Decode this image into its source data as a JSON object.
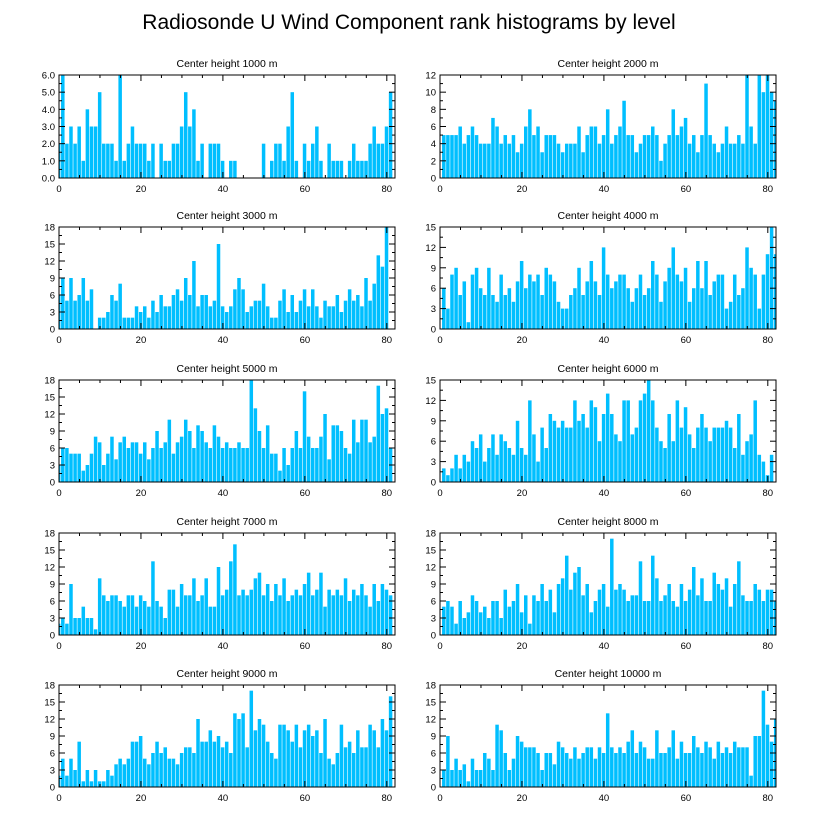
{
  "title": "Radiosonde U Wind Component rank histograms by level",
  "colors": {
    "bar": "#00bfff",
    "frame": "#000000",
    "background": "#ffffff"
  },
  "chart_data": [
    {
      "type": "bar",
      "title": "Center height 1000 m",
      "xlim": [
        0,
        82
      ],
      "ylim": [
        0,
        6
      ],
      "xticks": [
        0,
        20,
        40,
        60,
        80
      ],
      "yticks": [
        0,
        1,
        2,
        3,
        4,
        5,
        6
      ],
      "ytick_labels": [
        "0.0",
        "1.0",
        "2.0",
        "3.0",
        "4.0",
        "5.0",
        "6.0"
      ],
      "x_start": 0,
      "values": [
        2,
        6,
        2,
        3,
        2,
        3,
        1,
        4,
        3,
        3,
        5,
        2,
        2,
        2,
        1,
        6,
        1,
        2,
        3,
        2,
        2,
        2,
        1,
        2,
        0,
        2,
        1,
        1,
        2,
        2,
        3,
        5,
        3,
        4,
        1,
        2,
        0,
        2,
        2,
        2,
        1,
        0,
        1,
        1,
        0,
        0,
        0,
        0,
        0,
        0,
        2,
        0,
        1,
        2,
        2,
        1,
        3,
        5,
        1,
        0,
        2,
        1,
        2,
        3,
        1,
        0,
        2,
        1,
        1,
        1,
        0,
        1,
        2,
        1,
        1,
        1,
        2,
        3,
        2,
        2,
        3,
        5
      ]
    },
    {
      "type": "bar",
      "title": "Center height 2000 m",
      "xlim": [
        0,
        82
      ],
      "ylim": [
        0,
        12
      ],
      "xticks": [
        0,
        20,
        40,
        60,
        80
      ],
      "yticks": [
        0,
        2,
        4,
        6,
        8,
        10,
        12
      ],
      "ytick_labels": [
        "0",
        "2",
        "4",
        "6",
        "8",
        "10",
        "12"
      ],
      "x_start": 1,
      "values": [
        5,
        5,
        5,
        5,
        6,
        4,
        5,
        6,
        5,
        4,
        4,
        4,
        7,
        6,
        4,
        5,
        4,
        5,
        3,
        4,
        6,
        8,
        5,
        6,
        3,
        5,
        5,
        5,
        4,
        3,
        4,
        4,
        4,
        6,
        3,
        5,
        6,
        6,
        4,
        5,
        8,
        4,
        5,
        6,
        9,
        5,
        5,
        3,
        4,
        5,
        5,
        6,
        5,
        2,
        4,
        5,
        8,
        5,
        6,
        7,
        4,
        5,
        3,
        5,
        11,
        5,
        4,
        3,
        4,
        6,
        4,
        4,
        5,
        4,
        12,
        6,
        4,
        12,
        10,
        12,
        10,
        9
      ]
    },
    {
      "type": "bar",
      "title": "Center height 3000 m",
      "xlim": [
        0,
        82
      ],
      "ylim": [
        0,
        18
      ],
      "xticks": [
        0,
        20,
        40,
        60,
        80
      ],
      "yticks": [
        0,
        3,
        6,
        9,
        12,
        15,
        18
      ],
      "ytick_labels": [
        "0",
        "3",
        "6",
        "9",
        "12",
        "15",
        "18"
      ],
      "x_start": 0,
      "values": [
        6,
        9,
        5,
        9,
        5,
        6,
        9,
        5,
        7,
        0,
        2,
        2,
        3,
        6,
        5,
        8,
        2,
        2,
        2,
        4,
        3,
        4,
        2,
        5,
        3,
        6,
        4,
        4,
        6,
        7,
        5,
        9,
        6,
        12,
        4,
        6,
        6,
        4,
        5,
        15,
        4,
        3,
        4,
        7,
        9,
        7,
        3,
        4,
        5,
        5,
        8,
        4,
        2,
        2,
        5,
        7,
        3,
        6,
        3,
        5,
        7,
        4,
        7,
        4,
        2,
        5,
        4,
        4,
        6,
        3,
        5,
        7,
        5,
        6,
        4,
        9,
        5,
        8,
        13,
        11,
        18
      ]
    },
    {
      "type": "bar",
      "title": "Center height 4000 m",
      "xlim": [
        0,
        82
      ],
      "ylim": [
        0,
        15
      ],
      "xticks": [
        0,
        20,
        40,
        60,
        80
      ],
      "yticks": [
        0,
        3,
        6,
        9,
        12,
        15
      ],
      "ytick_labels": [
        "0",
        "3",
        "6",
        "9",
        "12",
        "15"
      ],
      "x_start": 1,
      "values": [
        6,
        3,
        8,
        9,
        5,
        7,
        1,
        8,
        9,
        6,
        5,
        9,
        5,
        4,
        8,
        5,
        6,
        4,
        7,
        10,
        6,
        8,
        7,
        8,
        5,
        9,
        8,
        7,
        4,
        3,
        3,
        5,
        6,
        9,
        5,
        7,
        10,
        7,
        5,
        12,
        8,
        6,
        7,
        8,
        8,
        6,
        4,
        6,
        8,
        5,
        6,
        10,
        8,
        4,
        7,
        9,
        12,
        8,
        7,
        9,
        4,
        6,
        10,
        6,
        10,
        5,
        7,
        8,
        8,
        3,
        4,
        8,
        5,
        6,
        12,
        9,
        8,
        3,
        8,
        11,
        15,
        11
      ]
    },
    {
      "type": "bar",
      "title": "Center height 5000 m",
      "xlim": [
        0,
        82
      ],
      "ylim": [
        0,
        18
      ],
      "xticks": [
        0,
        20,
        40,
        60,
        80
      ],
      "yticks": [
        0,
        3,
        6,
        9,
        12,
        15,
        18
      ],
      "ytick_labels": [
        "0",
        "3",
        "6",
        "9",
        "12",
        "15",
        "18"
      ],
      "x_start": 0,
      "values": [
        3,
        6,
        6,
        5,
        5,
        5,
        2,
        3,
        5,
        8,
        7,
        3,
        5,
        8,
        4,
        7,
        8,
        6,
        7,
        7,
        5,
        7,
        4,
        6,
        9,
        6,
        7,
        11,
        5,
        7,
        8,
        11,
        9,
        6,
        10,
        9,
        7,
        6,
        10,
        8,
        6,
        7,
        6,
        6,
        7,
        6,
        6,
        18,
        13,
        9,
        6,
        10,
        5,
        5,
        2,
        6,
        3,
        6,
        9,
        6,
        16,
        8,
        6,
        6,
        8,
        12,
        4,
        10,
        10,
        9,
        6,
        5,
        11,
        7,
        11,
        11,
        7,
        8,
        17,
        12,
        13,
        6
      ]
    },
    {
      "type": "bar",
      "title": "Center height 6000 m",
      "xlim": [
        0,
        82
      ],
      "ylim": [
        0,
        15
      ],
      "xticks": [
        0,
        20,
        40,
        60,
        80
      ],
      "yticks": [
        0,
        3,
        6,
        9,
        12,
        15
      ],
      "ytick_labels": [
        "0",
        "3",
        "6",
        "9",
        "12",
        "15"
      ],
      "x_start": 1,
      "values": [
        2,
        1,
        2,
        4,
        2,
        4,
        3,
        6,
        5,
        7,
        3,
        5,
        7,
        4,
        7,
        6,
        5,
        4,
        9,
        5,
        4,
        12,
        7,
        3,
        8,
        5,
        10,
        9,
        8,
        9,
        8,
        8,
        12,
        9,
        10,
        8,
        12,
        11,
        6,
        10,
        13,
        10,
        7,
        6,
        12,
        12,
        7,
        8,
        12,
        13,
        15,
        12,
        8,
        6,
        5,
        10,
        6,
        12,
        8,
        11,
        7,
        5,
        8,
        10,
        8,
        6,
        8,
        8,
        8,
        9,
        8,
        5,
        10,
        4,
        6,
        7,
        12,
        4,
        3,
        1,
        4
      ]
    },
    {
      "type": "bar",
      "title": "Center height 7000 m",
      "xlim": [
        0,
        82
      ],
      "ylim": [
        0,
        18
      ],
      "xticks": [
        0,
        20,
        40,
        60,
        80
      ],
      "yticks": [
        0,
        3,
        6,
        9,
        12,
        15,
        18
      ],
      "ytick_labels": [
        "0",
        "3",
        "6",
        "9",
        "12",
        "15",
        "18"
      ],
      "x_start": 0,
      "values": [
        2,
        3,
        2,
        9,
        3,
        3,
        5,
        3,
        3,
        1,
        10,
        7,
        6,
        7,
        7,
        6,
        5,
        7,
        7,
        5,
        7,
        6,
        5,
        13,
        6,
        5,
        3,
        8,
        8,
        5,
        9,
        7,
        7,
        10,
        6,
        7,
        10,
        5,
        5,
        12,
        7,
        8,
        13,
        16,
        7,
        8,
        7,
        8,
        10,
        11,
        7,
        9,
        6,
        9,
        7,
        10,
        6,
        7,
        8,
        7,
        9,
        11,
        7,
        8,
        11,
        5,
        8,
        7,
        8,
        7,
        10,
        6,
        8,
        7,
        9,
        7,
        5,
        9,
        6,
        9,
        8,
        7
      ]
    },
    {
      "type": "bar",
      "title": "Center height 8000 m",
      "xlim": [
        0,
        82
      ],
      "ylim": [
        0,
        18
      ],
      "xticks": [
        0,
        20,
        40,
        60,
        80
      ],
      "yticks": [
        0,
        3,
        6,
        9,
        12,
        15,
        18
      ],
      "ytick_labels": [
        "0",
        "3",
        "6",
        "9",
        "12",
        "15",
        "18"
      ],
      "x_start": 1,
      "values": [
        5,
        6,
        5,
        2,
        6,
        3,
        4,
        7,
        6,
        4,
        5,
        3,
        6,
        6,
        3,
        8,
        5,
        6,
        9,
        4,
        7,
        2,
        7,
        6,
        9,
        6,
        8,
        4,
        9,
        10,
        14,
        8,
        11,
        12,
        7,
        9,
        4,
        6,
        8,
        9,
        5,
        17,
        8,
        9,
        8,
        6,
        7,
        7,
        13,
        6,
        6,
        14,
        10,
        6,
        7,
        9,
        6,
        5,
        9,
        6,
        8,
        12,
        7,
        10,
        6,
        6,
        11,
        9,
        8,
        10,
        5,
        9,
        13,
        7,
        6,
        6,
        9,
        8,
        6,
        8,
        8,
        6
      ]
    },
    {
      "type": "bar",
      "title": "Center height 9000 m",
      "xlim": [
        0,
        82
      ],
      "ylim": [
        0,
        18
      ],
      "xticks": [
        0,
        20,
        40,
        60,
        80
      ],
      "yticks": [
        0,
        3,
        6,
        9,
        12,
        15,
        18
      ],
      "ytick_labels": [
        "0",
        "3",
        "6",
        "9",
        "12",
        "15",
        "18"
      ],
      "x_start": 0,
      "values": [
        2,
        5,
        2,
        5,
        3,
        8,
        1,
        3,
        1,
        3,
        1,
        1,
        3,
        2,
        4,
        5,
        4,
        5,
        8,
        8,
        9,
        5,
        4,
        6,
        8,
        6,
        7,
        5,
        5,
        4,
        6,
        7,
        7,
        6,
        12,
        8,
        8,
        10,
        8,
        9,
        7,
        8,
        6,
        13,
        12,
        13,
        7,
        17,
        10,
        12,
        11,
        8,
        6,
        5,
        11,
        11,
        10,
        8,
        11,
        7,
        10,
        11,
        9,
        10,
        6,
        12,
        5,
        4,
        6,
        11,
        7,
        8,
        6,
        10,
        7,
        7,
        11,
        10,
        7,
        12,
        10,
        16
      ]
    },
    {
      "type": "bar",
      "title": "Center height 10000 m",
      "xlim": [
        0,
        82
      ],
      "ylim": [
        0,
        18
      ],
      "xticks": [
        0,
        20,
        40,
        60,
        80
      ],
      "yticks": [
        0,
        3,
        6,
        9,
        12,
        15,
        18
      ],
      "ytick_labels": [
        "0",
        "3",
        "6",
        "9",
        "12",
        "15",
        "18"
      ],
      "x_start": 1,
      "values": [
        3,
        9,
        3,
        5,
        3,
        4,
        1,
        5,
        3,
        3,
        6,
        5,
        3,
        11,
        10,
        6,
        3,
        5,
        9,
        8,
        7,
        7,
        7,
        6,
        3,
        6,
        6,
        4,
        8,
        7,
        6,
        5,
        7,
        5,
        6,
        7,
        7,
        5,
        7,
        6,
        13,
        7,
        6,
        7,
        6,
        8,
        10,
        6,
        8,
        7,
        5,
        5,
        10,
        6,
        6,
        7,
        10,
        5,
        8,
        6,
        6,
        9,
        7,
        6,
        8,
        7,
        5,
        8,
        6,
        7,
        6,
        8,
        7,
        7,
        7,
        2,
        9,
        9,
        17,
        11,
        8,
        12
      ]
    }
  ]
}
